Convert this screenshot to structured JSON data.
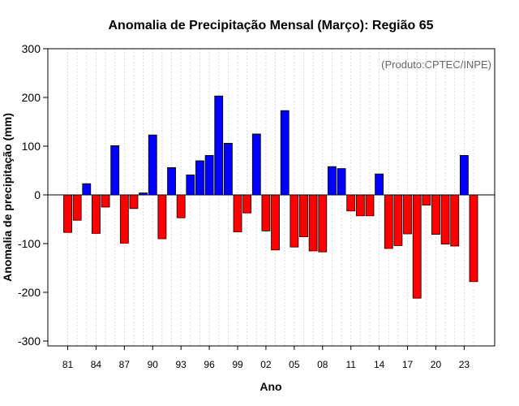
{
  "chart_data": {
    "type": "bar",
    "title": "Anomalia de Precipitação Mensal (Março): Região 65",
    "xlabel": "Ano",
    "ylabel": "Anomalia de precipitação (mm)",
    "credit": "(Produto:CPTEC/INPE)",
    "ylim": [
      -310,
      300
    ],
    "yticks": [
      300,
      200,
      100,
      0,
      -100,
      -200,
      -300
    ],
    "xtick_labels": [
      "81",
      "84",
      "87",
      "90",
      "93",
      "96",
      "99",
      "02",
      "05",
      "08",
      "11",
      "14",
      "17",
      "20",
      "23"
    ],
    "xtick_every": 3,
    "grid": true,
    "colors": {
      "positive": "#0000ff",
      "negative": "#ff0000",
      "outline": "#000000",
      "grid": "#d3d3d3"
    },
    "categories": [
      "1981",
      "1982",
      "1983",
      "1984",
      "1985",
      "1986",
      "1987",
      "1988",
      "1989",
      "1990",
      "1991",
      "1992",
      "1993",
      "1994",
      "1995",
      "1996",
      "1997",
      "1998",
      "1999",
      "2000",
      "2001",
      "2002",
      "2003",
      "2004",
      "2005",
      "2006",
      "2007",
      "2008",
      "2009",
      "2010",
      "2011",
      "2012",
      "2013",
      "2014",
      "2015",
      "2016",
      "2017",
      "2018",
      "2019",
      "2020",
      "2021",
      "2022",
      "2023",
      "2024"
    ],
    "values": [
      -77,
      -52,
      23,
      -79,
      -25,
      101,
      -99,
      -28,
      4,
      123,
      -90,
      56,
      -47,
      41,
      70,
      81,
      203,
      106,
      -76,
      -37,
      125,
      -74,
      -113,
      173,
      -107,
      -86,
      -115,
      -117,
      58,
      54,
      -33,
      -43,
      -43,
      43,
      -110,
      -104,
      -80,
      -212,
      -21,
      -81,
      -101,
      -105,
      81,
      -178
    ]
  }
}
